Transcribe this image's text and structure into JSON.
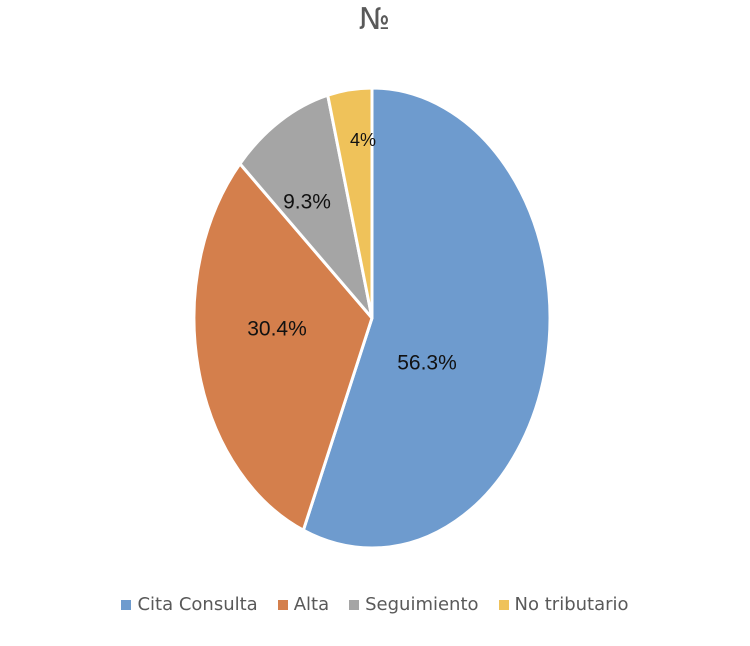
{
  "chart_data": {
    "type": "pie",
    "title": "№",
    "categories": [
      "Cita Consulta",
      "Alta",
      "Seguimiento",
      "No tributario"
    ],
    "values": [
      56.3,
      30.4,
      9.3,
      4
    ],
    "labels": [
      "56.3%",
      "30.4%",
      "9.3%",
      "4%"
    ],
    "colors": [
      "#6e9bce",
      "#d47f4c",
      "#a5a5a5",
      "#efc25a"
    ],
    "legend_position": "bottom"
  }
}
